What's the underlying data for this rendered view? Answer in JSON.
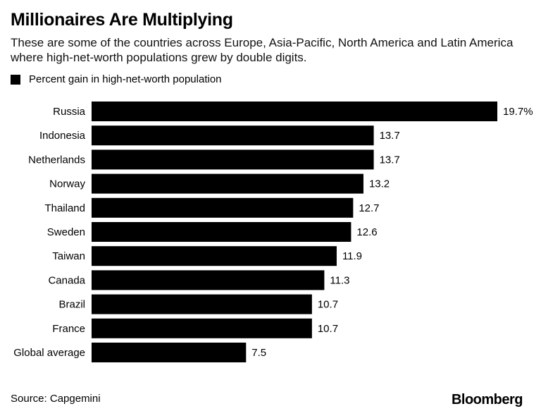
{
  "chart_data": {
    "type": "bar",
    "orientation": "horizontal",
    "title": "Millionaires Are Multiplying",
    "subtitle": "These are some of the countries across Europe, Asia-Pacific, North America and Latin America where high-net-worth populations grew by double digits.",
    "legend": [
      "Percent gain in high-net-worth population"
    ],
    "legend_placement": "top-left",
    "categories": [
      "Russia",
      "Indonesia",
      "Netherlands",
      "Norway",
      "Thailand",
      "Sweden",
      "Taiwan",
      "Canada",
      "Brazil",
      "France",
      "Global average"
    ],
    "values": [
      19.7,
      13.7,
      13.7,
      13.2,
      12.7,
      12.6,
      11.9,
      11.3,
      10.7,
      10.7,
      7.5
    ],
    "data_labels": [
      "19.7%",
      "13.7",
      "13.7",
      "13.2",
      "12.7",
      "12.6",
      "11.9",
      "11.3",
      "10.7",
      "10.7",
      "7.5"
    ],
    "xlim": [
      0,
      19.7
    ],
    "grid": false,
    "bar_color": "#000000",
    "source": "Source: Capgemini"
  },
  "brand": "Bloomberg"
}
